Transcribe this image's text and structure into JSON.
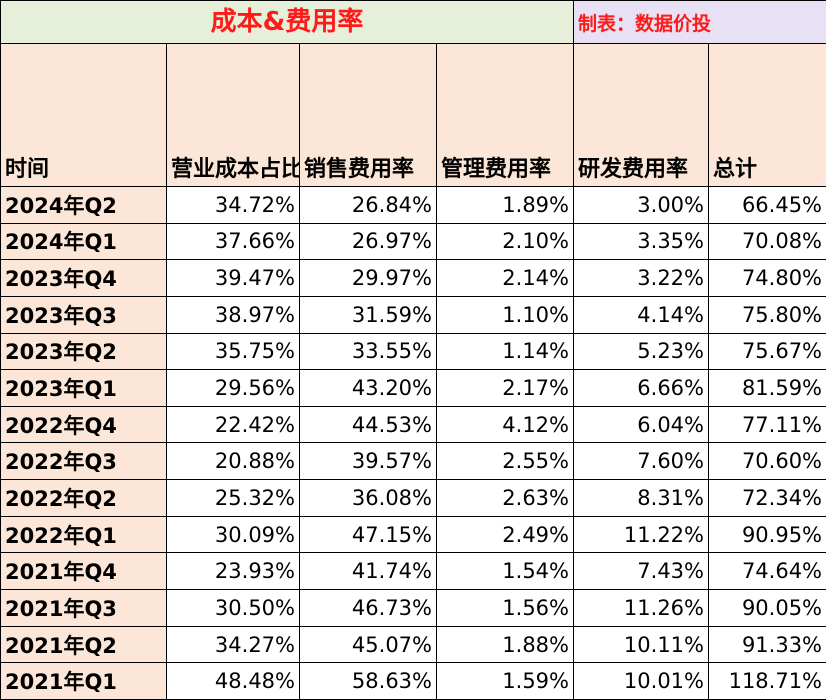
{
  "title": "成本&费用率",
  "credit": "制表：数据价投",
  "headers": [
    "时间",
    "营业成本占比",
    "销售费用率",
    "管理费用率",
    "研发费用率",
    "总计"
  ],
  "rows": [
    {
      "period": "2024年Q2",
      "cost": "34.72%",
      "sales": "26.84%",
      "admin": "1.89%",
      "rd": "3.00%",
      "total": "66.45%"
    },
    {
      "period": "2024年Q1",
      "cost": "37.66%",
      "sales": "26.97%",
      "admin": "2.10%",
      "rd": "3.35%",
      "total": "70.08%"
    },
    {
      "period": "2023年Q4",
      "cost": "39.47%",
      "sales": "29.97%",
      "admin": "2.14%",
      "rd": "3.22%",
      "total": "74.80%"
    },
    {
      "period": "2023年Q3",
      "cost": "38.97%",
      "sales": "31.59%",
      "admin": "1.10%",
      "rd": "4.14%",
      "total": "75.80%"
    },
    {
      "period": "2023年Q2",
      "cost": "35.75%",
      "sales": "33.55%",
      "admin": "1.14%",
      "rd": "5.23%",
      "total": "75.67%"
    },
    {
      "period": "2023年Q1",
      "cost": "29.56%",
      "sales": "43.20%",
      "admin": "2.17%",
      "rd": "6.66%",
      "total": "81.59%"
    },
    {
      "period": "2022年Q4",
      "cost": "22.42%",
      "sales": "44.53%",
      "admin": "4.12%",
      "rd": "6.04%",
      "total": "77.11%"
    },
    {
      "period": "2022年Q3",
      "cost": "20.88%",
      "sales": "39.57%",
      "admin": "2.55%",
      "rd": "7.60%",
      "total": "70.60%"
    },
    {
      "period": "2022年Q2",
      "cost": "25.32%",
      "sales": "36.08%",
      "admin": "2.63%",
      "rd": "8.31%",
      "total": "72.34%"
    },
    {
      "period": "2022年Q1",
      "cost": "30.09%",
      "sales": "47.15%",
      "admin": "2.49%",
      "rd": "11.22%",
      "total": "90.95%"
    },
    {
      "period": "2021年Q4",
      "cost": "23.93%",
      "sales": "41.74%",
      "admin": "1.54%",
      "rd": "7.43%",
      "total": "74.64%"
    },
    {
      "period": "2021年Q3",
      "cost": "30.50%",
      "sales": "46.73%",
      "admin": "1.56%",
      "rd": "11.26%",
      "total": "90.05%"
    },
    {
      "period": "2021年Q2",
      "cost": "34.27%",
      "sales": "45.07%",
      "admin": "1.88%",
      "rd": "10.11%",
      "total": "91.33%"
    },
    {
      "period": "2021年Q1",
      "cost": "48.48%",
      "sales": "58.63%",
      "admin": "1.59%",
      "rd": "10.01%",
      "total": "118.71%"
    }
  ]
}
